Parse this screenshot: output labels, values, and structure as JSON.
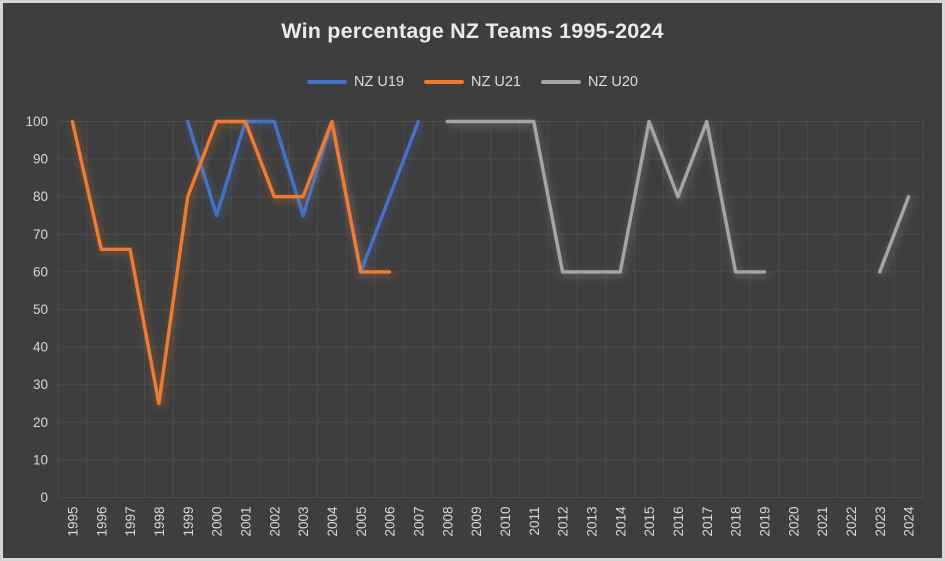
{
  "chart_title": "Win percentage NZ Teams 1995-2024",
  "chart_data": {
    "type": "line",
    "title": "Win percentage NZ Teams 1995-2024",
    "categories": [
      "1995",
      "1996",
      "1997",
      "1998",
      "1999",
      "2000",
      "2001",
      "2002",
      "2003",
      "2004",
      "2005",
      "2006",
      "2007",
      "2008",
      "2009",
      "2010",
      "2011",
      "2012",
      "2013",
      "2014",
      "2015",
      "2016",
      "2017",
      "2018",
      "2019",
      "2020",
      "2021",
      "2022",
      "2023",
      "2024"
    ],
    "series": [
      {
        "name": "NZ U19",
        "color": "#4472C4",
        "values": [
          null,
          null,
          null,
          null,
          100,
          75,
          100,
          100,
          75,
          100,
          60,
          80,
          100,
          null,
          null,
          null,
          null,
          null,
          null,
          null,
          null,
          null,
          null,
          null,
          null,
          null,
          null,
          null,
          null,
          null
        ]
      },
      {
        "name": "NZ U21",
        "color": "#ED7D31",
        "values": [
          100,
          66,
          66,
          25,
          80,
          100,
          100,
          80,
          80,
          100,
          60,
          60,
          null,
          null,
          null,
          null,
          null,
          null,
          null,
          null,
          null,
          null,
          null,
          null,
          null,
          null,
          null,
          null,
          null,
          null
        ]
      },
      {
        "name": "NZ U20",
        "color": "#A5A5A5",
        "values": [
          null,
          null,
          null,
          null,
          null,
          null,
          null,
          null,
          null,
          null,
          null,
          null,
          null,
          100,
          100,
          100,
          100,
          60,
          60,
          60,
          100,
          80,
          100,
          60,
          60,
          null,
          null,
          null,
          60,
          80
        ]
      }
    ],
    "ylim": [
      0,
      100
    ],
    "yticks": [
      0,
      10,
      20,
      30,
      40,
      50,
      60,
      70,
      80,
      90,
      100
    ],
    "grid": true,
    "legend_position": "top",
    "colors": {
      "background": "#3E3E3E",
      "gridline": "#4B4B4B",
      "title_text": "#EAEAEA",
      "axis_text": "#D7D7D7",
      "border": "#D6D6D6"
    }
  }
}
